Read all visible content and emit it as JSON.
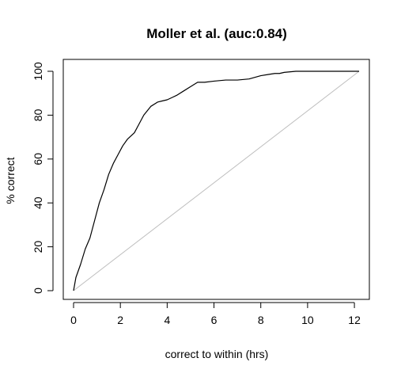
{
  "chart_data": {
    "type": "line",
    "title": "Moller et al. (auc:0.84)",
    "xlabel": "correct to within (hrs)",
    "ylabel": "% correct",
    "xlim": [
      0,
      12.2
    ],
    "ylim": [
      0,
      100
    ],
    "x_ticks": [
      0,
      2,
      4,
      6,
      8,
      10,
      12
    ],
    "y_ticks": [
      0,
      20,
      40,
      60,
      80,
      100
    ],
    "grid": false,
    "legend": "none",
    "colors": {
      "curve": "#000000",
      "diagonal": "#bebebe",
      "axes": "#000000"
    },
    "series": [
      {
        "x": [
          0,
          0.1,
          0.3,
          0.5,
          0.7,
          0.9,
          1.1,
          1.3,
          1.5,
          1.7,
          1.9,
          2.1,
          2.3,
          2.6,
          2.8,
          3.0,
          3.3,
          3.6,
          3.8,
          4.0,
          4.2,
          4.4,
          4.7,
          5.0,
          5.3,
          5.6,
          6.0,
          6.5,
          7.0,
          7.5,
          8.0,
          8.3,
          8.6,
          8.8,
          9.0,
          9.5,
          10,
          11,
          12.2
        ],
        "values": [
          0,
          6,
          12,
          19,
          24,
          32,
          40,
          46,
          53,
          58,
          62,
          66,
          69,
          72,
          76,
          80,
          84,
          86,
          86.5,
          87,
          88,
          89,
          91,
          93,
          95,
          95,
          95.5,
          96,
          96,
          96.5,
          98,
          98.5,
          99,
          99,
          99.5,
          100,
          100,
          100,
          100
        ]
      },
      {
        "x": [
          0,
          12.2
        ],
        "values": [
          0,
          100
        ]
      }
    ]
  }
}
